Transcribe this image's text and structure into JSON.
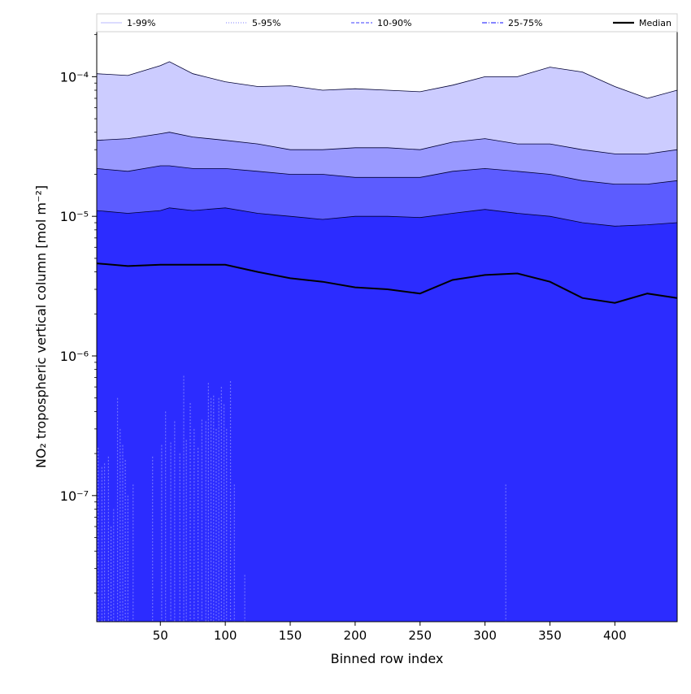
{
  "chart_data": {
    "type": "area",
    "title": "",
    "xlabel": "Binned row index",
    "ylabel": "NO₂ tropospheric vertical column [mol m⁻²]",
    "x_scale": "linear",
    "y_scale": "log",
    "xlim": [
      1,
      448
    ],
    "ylim": [
      1.25e-08,
      0.00021
    ],
    "x_ticks": [
      50,
      100,
      150,
      200,
      250,
      300,
      350,
      400
    ],
    "x_tick_labels": [
      "50",
      "100",
      "150",
      "200",
      "250",
      "300",
      "350",
      "400"
    ],
    "y_ticks": [
      1e-07,
      1e-06,
      1e-05,
      0.0001
    ],
    "y_tick_labels": [
      "10⁻⁷",
      "10⁻⁶",
      "10⁻⁵",
      "10⁻⁴"
    ],
    "legend_position": "top, above plot, single row",
    "legend": [
      {
        "label": "1-99%",
        "color": "#c8c8ff",
        "style": "solid"
      },
      {
        "label": "5-95%",
        "color": "#9696ff",
        "style": "dotted"
      },
      {
        "label": "10-90%",
        "color": "#6464ff",
        "style": "dashed"
      },
      {
        "label": "25-75%",
        "color": "#3c3cff",
        "style": "dashdot"
      },
      {
        "label": "Median",
        "color": "#000000",
        "style": "solid"
      }
    ],
    "band_colors": [
      "#ccccff",
      "#9999ff",
      "#5c5cff",
      "#2c2cff"
    ],
    "x": [
      1,
      25,
      50,
      57,
      75,
      100,
      125,
      150,
      175,
      200,
      225,
      250,
      275,
      300,
      325,
      350,
      375,
      400,
      425,
      448
    ],
    "series": [
      {
        "name": "99th percentile",
        "values": [
          0.000105,
          0.000102,
          0.00012,
          0.000128,
          0.000105,
          9.2e-05,
          8.5e-05,
          8.6e-05,
          8e-05,
          8.2e-05,
          8e-05,
          7.8e-05,
          8.7e-05,
          0.0001,
          0.0001,
          0.000117,
          0.000108,
          8.5e-05,
          7e-05,
          8e-05
        ]
      },
      {
        "name": "95th percentile",
        "values": [
          3.5e-05,
          3.6e-05,
          3.9e-05,
          4e-05,
          3.7e-05,
          3.5e-05,
          3.3e-05,
          3e-05,
          3e-05,
          3.1e-05,
          3.1e-05,
          3e-05,
          3.4e-05,
          3.6e-05,
          3.3e-05,
          3.3e-05,
          3e-05,
          2.8e-05,
          2.8e-05,
          3e-05
        ]
      },
      {
        "name": "90th percentile",
        "values": [
          2.2e-05,
          2.1e-05,
          2.3e-05,
          2.3e-05,
          2.2e-05,
          2.2e-05,
          2.1e-05,
          2e-05,
          2e-05,
          1.9e-05,
          1.9e-05,
          1.9e-05,
          2.1e-05,
          2.2e-05,
          2.1e-05,
          2e-05,
          1.8e-05,
          1.7e-05,
          1.7e-05,
          1.8e-05
        ]
      },
      {
        "name": "75th percentile",
        "values": [
          1.1e-05,
          1.05e-05,
          1.1e-05,
          1.15e-05,
          1.1e-05,
          1.15e-05,
          1.05e-05,
          1e-05,
          9.5e-06,
          1e-05,
          1e-05,
          9.8e-06,
          1.05e-05,
          1.12e-05,
          1.05e-05,
          1e-05,
          9e-06,
          8.5e-06,
          8.7e-06,
          9e-06
        ]
      },
      {
        "name": "Median",
        "values": [
          4.6e-06,
          4.4e-06,
          4.5e-06,
          4.5e-06,
          4.5e-06,
          4.5e-06,
          4e-06,
          3.6e-06,
          3.4e-06,
          3.1e-06,
          3e-06,
          2.8e-06,
          3.5e-06,
          3.8e-06,
          3.9e-06,
          3.4e-06,
          2.6e-06,
          2.4e-06,
          2.8e-06,
          2.6e-06
        ]
      },
      {
        "name": "1st percentile",
        "values": [
          1.25e-08,
          1.25e-08,
          1.25e-08,
          1.25e-08,
          1.25e-08,
          1.25e-08,
          1.25e-08,
          1.25e-08,
          1.25e-08,
          1.25e-08,
          1.25e-08,
          1.25e-08,
          1.25e-08,
          1.25e-08,
          1.25e-08,
          1.25e-08,
          1.25e-08,
          1.25e-08,
          1.25e-08,
          1.25e-08
        ]
      }
    ],
    "low_spikes": [
      {
        "x": 2,
        "y": 2.2e-07
      },
      {
        "x": 5,
        "y": 1.6e-07
      },
      {
        "x": 7,
        "y": 1.7e-07
      },
      {
        "x": 10,
        "y": 1.9e-07
      },
      {
        "x": 12,
        "y": 6e-08
      },
      {
        "x": 14,
        "y": 8e-08
      },
      {
        "x": 17,
        "y": 5e-07
      },
      {
        "x": 19,
        "y": 3e-07
      },
      {
        "x": 21,
        "y": 2.3e-07
      },
      {
        "x": 23,
        "y": 1.8e-07
      },
      {
        "x": 25,
        "y": 1e-07
      },
      {
        "x": 29,
        "y": 1.2e-07
      },
      {
        "x": 44,
        "y": 1.9e-07
      },
      {
        "x": 51,
        "y": 2.3e-07
      },
      {
        "x": 54,
        "y": 4e-07
      },
      {
        "x": 58,
        "y": 2.4e-07
      },
      {
        "x": 61,
        "y": 3.4e-07
      },
      {
        "x": 65,
        "y": 2e-07
      },
      {
        "x": 68,
        "y": 7.2e-07
      },
      {
        "x": 70,
        "y": 2.5e-07
      },
      {
        "x": 73,
        "y": 4.6e-07
      },
      {
        "x": 76,
        "y": 3e-07
      },
      {
        "x": 79,
        "y": 2.2e-07
      },
      {
        "x": 82,
        "y": 3.5e-07
      },
      {
        "x": 85,
        "y": 3.4e-07
      },
      {
        "x": 87,
        "y": 6.4e-07
      },
      {
        "x": 89,
        "y": 5e-07
      },
      {
        "x": 91,
        "y": 5.2e-07
      },
      {
        "x": 93,
        "y": 3e-07
      },
      {
        "x": 95,
        "y": 5e-07
      },
      {
        "x": 97,
        "y": 6e-07
      },
      {
        "x": 99,
        "y": 4.5e-07
      },
      {
        "x": 101,
        "y": 3e-07
      },
      {
        "x": 104,
        "y": 6.6e-07
      },
      {
        "x": 107,
        "y": 1.2e-07
      },
      {
        "x": 115,
        "y": 2.7e-08
      },
      {
        "x": 316,
        "y": 1.2e-07
      }
    ]
  }
}
